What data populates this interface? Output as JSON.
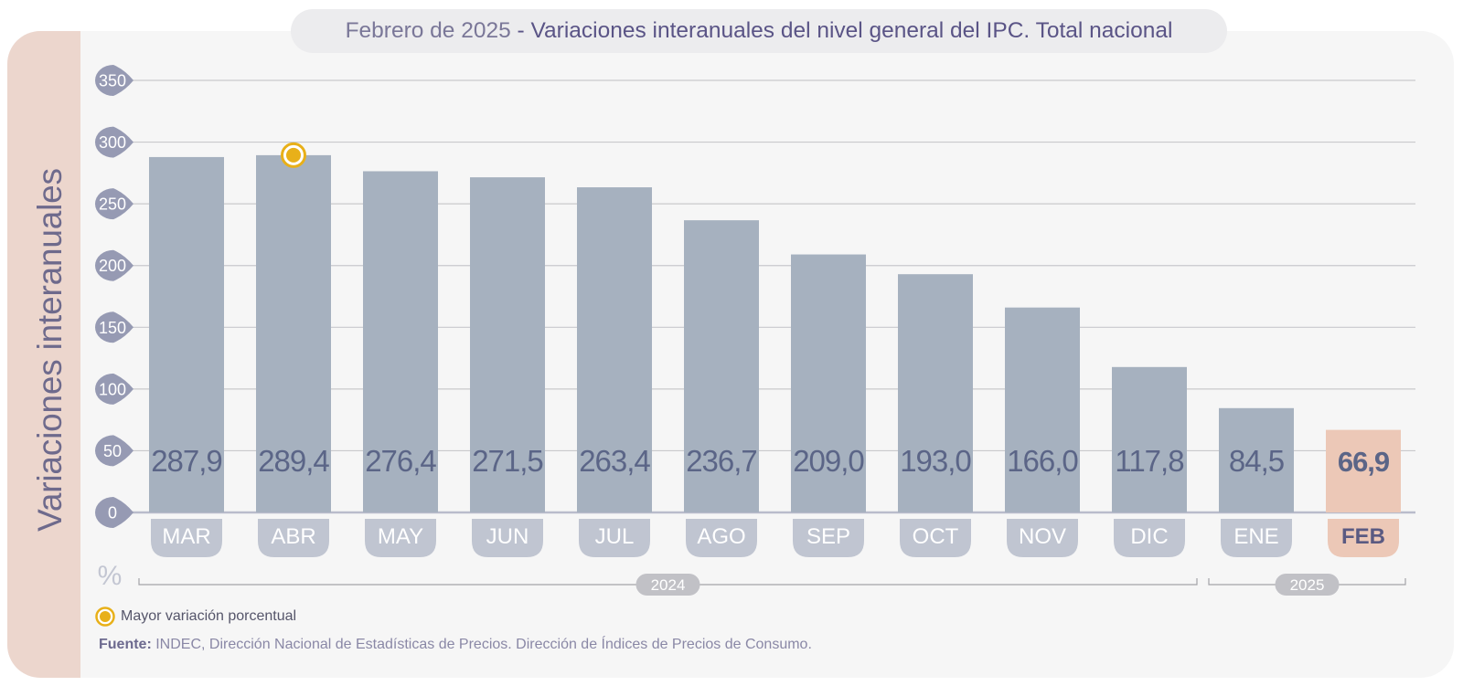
{
  "title": {
    "prefix": "Febrero de 2025",
    "separator": " - ",
    "main": "Variaciones interanuales del nivel general del IPC. Total nacional"
  },
  "side_label": "Variaciones interanuales",
  "unit_symbol": "%",
  "legend": {
    "label": "Mayor variación porcentual",
    "marker_color": "#e8b019"
  },
  "source": {
    "label": "Fuente:",
    "text": "INDEC, Dirección Nacional de Estadísticas de Precios. Dirección de Índices de Precios de Consumo."
  },
  "colors": {
    "bar": "#a6b1bf",
    "bar_highlight": "#ecc8b7",
    "value_text": "#5b6587",
    "month_pill": "#c0c5d1",
    "month_pill_highlight": "#ecc8b7",
    "year_badge": "#c1c1c6",
    "tick_badge": "#969ab3",
    "grid": "#c9c9cc",
    "marker": "#e8b019"
  },
  "chart_data": {
    "type": "bar",
    "categories": [
      "MAR",
      "ABR",
      "MAY",
      "JUN",
      "JUL",
      "AGO",
      "SEP",
      "OCT",
      "NOV",
      "DIC",
      "ENE",
      "FEB"
    ],
    "values": [
      287.9,
      289.4,
      276.4,
      271.5,
      263.4,
      236.7,
      209.0,
      193.0,
      166.0,
      117.8,
      84.5,
      66.9
    ],
    "value_labels": [
      "287,9",
      "289,4",
      "276,4",
      "271,5",
      "263,4",
      "236,7",
      "209,0",
      "193,0",
      "166,0",
      "117,8",
      "84,5",
      "66,9"
    ],
    "ylabel": "Variaciones interanuales",
    "yticks": [
      0,
      50,
      100,
      150,
      200,
      250,
      300,
      350
    ],
    "ylim": [
      0,
      350
    ],
    "grid": true,
    "highlight_category": "FEB",
    "max_marker_category": "ABR",
    "year_groups": [
      {
        "label": "2024",
        "from": "MAR",
        "to": "DIC"
      },
      {
        "label": "2025",
        "from": "ENE",
        "to": "FEB"
      }
    ]
  }
}
